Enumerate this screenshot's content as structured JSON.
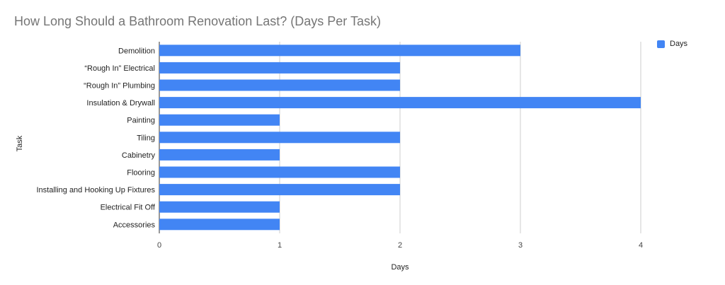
{
  "chart_data": {
    "type": "bar",
    "orientation": "horizontal",
    "title": "How Long Should a Bathroom Renovation Last? (Days Per Task)",
    "xlabel": "Days",
    "ylabel": "Task",
    "categories": [
      "Demolition",
      "“Rough In” Electrical",
      "“Rough In” Plumbing",
      "Insulation & Drywall",
      "Painting",
      "Tiling",
      "Cabinetry",
      "Flooring",
      "Installing and Hooking Up Fixtures",
      "Electrical Fit Off",
      "Accessories"
    ],
    "series": [
      {
        "name": "Days",
        "color": "#4285f4",
        "values": [
          3,
          2,
          2,
          4,
          1,
          2,
          1,
          2,
          2,
          1,
          1
        ]
      }
    ],
    "xlim": [
      0,
      4
    ],
    "xticks": [
      "0",
      "1",
      "2",
      "3",
      "4"
    ],
    "grid": true,
    "legend_position": "top-right"
  }
}
